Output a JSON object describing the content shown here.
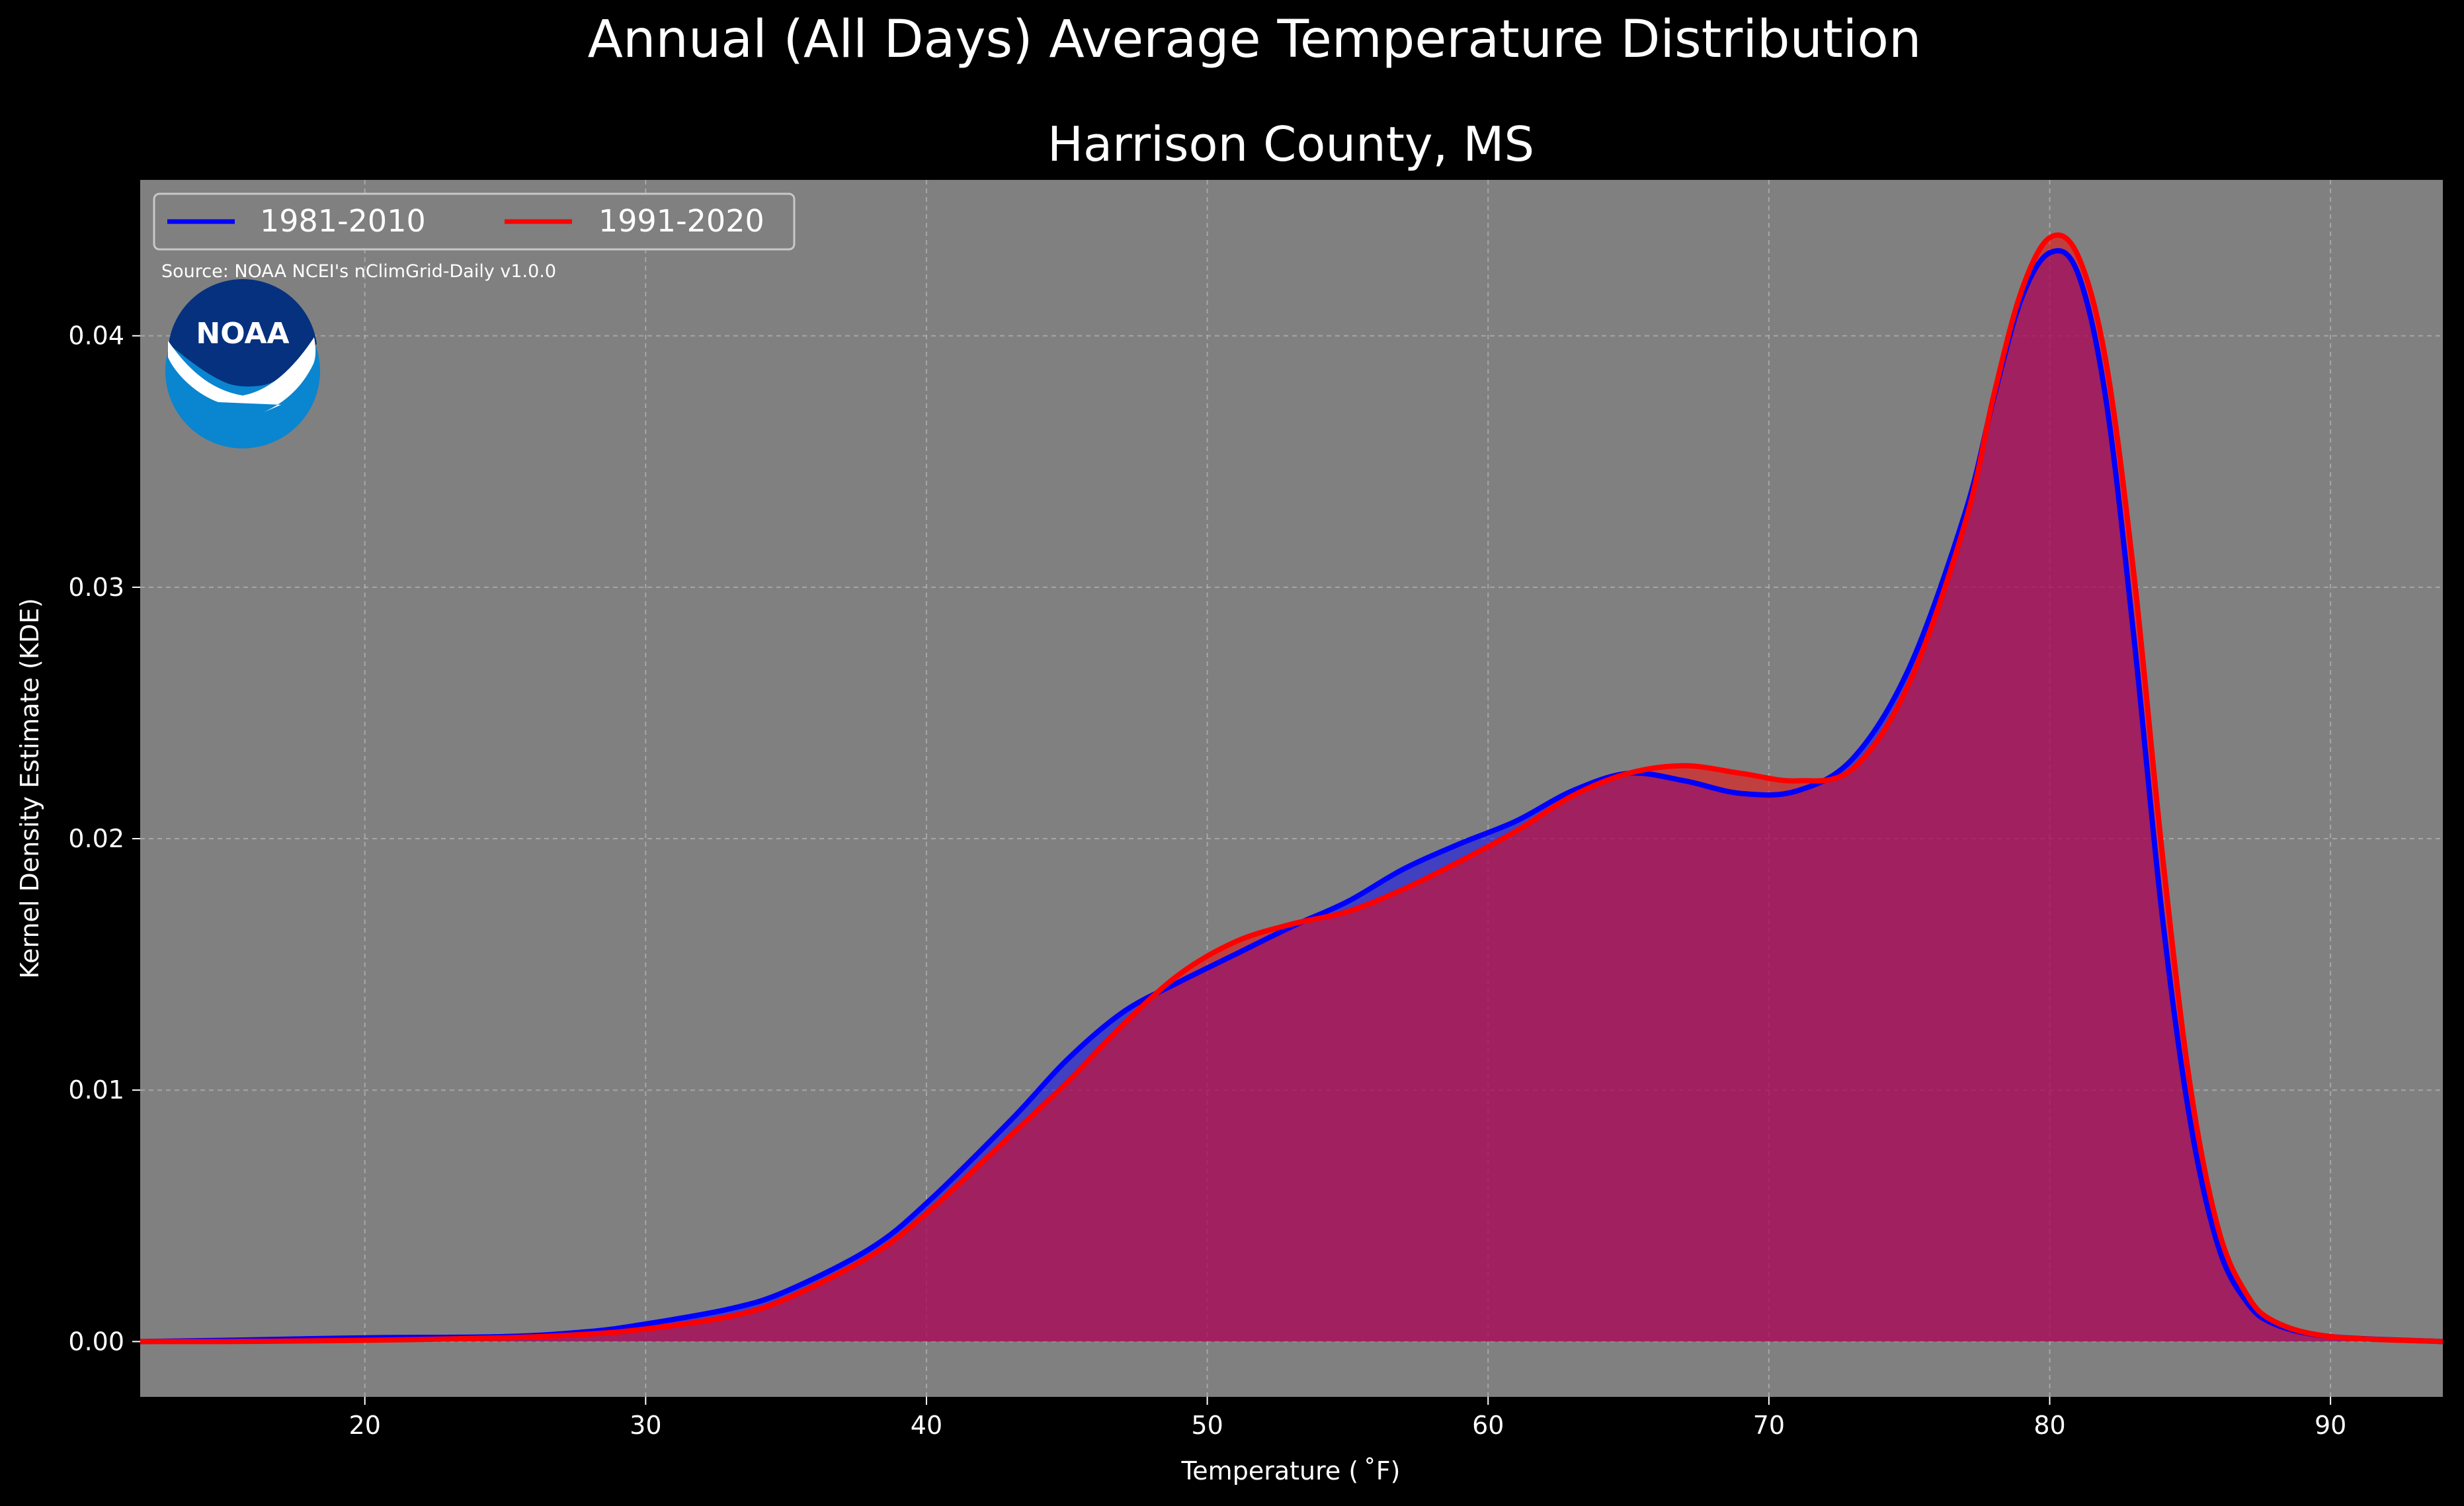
{
  "chart_data": {
    "type": "area",
    "suptitle": "Annual (All Days) Average Temperature Distribution",
    "title": "Harrison County, MS",
    "xlabel": "Temperature ($^\\circ$F)",
    "xlabel_display": "Temperature ( ˚F)",
    "ylabel": "Kernel Density Estimate (KDE)",
    "xlim": [
      12,
      94
    ],
    "ylim": [
      -0.0022,
      0.0462
    ],
    "xticks": [
      20,
      30,
      40,
      50,
      60,
      70,
      80,
      90
    ],
    "yticks": [
      0.0,
      0.01,
      0.02,
      0.03,
      0.04
    ],
    "ytick_labels": [
      "0.00",
      "0.01",
      "0.02",
      "0.03",
      "0.04"
    ],
    "grid": true,
    "legend": {
      "placement": "top-left",
      "columns": 2
    },
    "source": "Source: NOAA NCEI's nClimGrid-Daily v1.0.0",
    "logo_text": "NOAA",
    "colors": {
      "background": "#000000",
      "axes_face": "#808080",
      "grid": "#b3b3b3",
      "text": "#ffffff"
    },
    "series": [
      {
        "name": "1981-2010",
        "color": "#0000ff",
        "fill": "#0000ff",
        "x": [
          12,
          15,
          20,
          25,
          28,
          30,
          33,
          35,
          38,
          40,
          43,
          45,
          47,
          49,
          51,
          53,
          55,
          57,
          59,
          61,
          63,
          65,
          67,
          69,
          71,
          73,
          75,
          77,
          78,
          79,
          80,
          81,
          82,
          83,
          84,
          85,
          86,
          87,
          88,
          90,
          94
        ],
        "y": [
          0.0,
          5e-05,
          0.00015,
          0.0002,
          0.0004,
          0.0007,
          0.0013,
          0.002,
          0.0037,
          0.0055,
          0.0088,
          0.0112,
          0.0131,
          0.0143,
          0.0154,
          0.0165,
          0.0175,
          0.0188,
          0.0198,
          0.0207,
          0.0219,
          0.0226,
          0.0223,
          0.0218,
          0.0219,
          0.0232,
          0.0268,
          0.033,
          0.0375,
          0.0415,
          0.0433,
          0.0425,
          0.0375,
          0.028,
          0.017,
          0.0088,
          0.0038,
          0.0016,
          0.0007,
          0.0002,
          0.0
        ]
      },
      {
        "name": "1991-2020",
        "color": "#ff0000",
        "fill": "#ff0000",
        "x": [
          12,
          15,
          20,
          25,
          28,
          30,
          33,
          35,
          38,
          40,
          43,
          45,
          47,
          49,
          51,
          53,
          55,
          57,
          59,
          61,
          63,
          65,
          67,
          69,
          71,
          73,
          75,
          77,
          78,
          79,
          80,
          81,
          82,
          83,
          84,
          85,
          86,
          87,
          88,
          90,
          94
        ],
        "y": [
          0.0,
          0.0,
          5e-05,
          0.00015,
          0.0003,
          0.0005,
          0.001,
          0.0017,
          0.0034,
          0.0051,
          0.0082,
          0.0103,
          0.0126,
          0.0146,
          0.0159,
          0.0166,
          0.0171,
          0.018,
          0.0191,
          0.0203,
          0.0217,
          0.0226,
          0.0229,
          0.0226,
          0.0223,
          0.0228,
          0.0262,
          0.0326,
          0.0376,
          0.0418,
          0.0439,
          0.0432,
          0.039,
          0.0305,
          0.0195,
          0.0102,
          0.0045,
          0.0019,
          0.0008,
          0.0002,
          0.0
        ]
      }
    ]
  }
}
